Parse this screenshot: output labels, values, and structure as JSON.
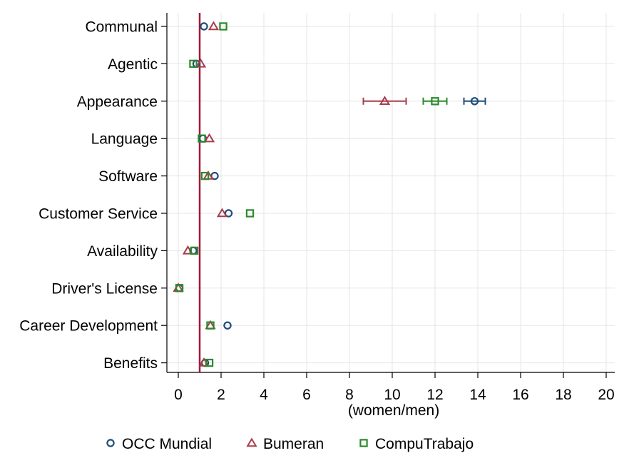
{
  "chart_data": {
    "type": "scatter",
    "title": "",
    "xlabel": "(women/men)",
    "ylabel": "",
    "xlim": [
      0,
      20
    ],
    "xticks": [
      0,
      2,
      4,
      6,
      8,
      10,
      12,
      14,
      16,
      18,
      20
    ],
    "xtick_labels": [
      "0",
      "2",
      "4",
      "6",
      "8",
      "10",
      "12",
      "14",
      "16",
      "18",
      "20"
    ],
    "grid": true,
    "legend_position": "bottom",
    "reference_line": {
      "x": 1,
      "color": "#a2173d"
    },
    "categories": [
      "Communal",
      "Agentic",
      "Appearance",
      "Language",
      "Software",
      "Customer Service",
      "Availability",
      "Driver's License",
      "Career Development",
      "Benefits"
    ],
    "series": [
      {
        "name": "OCC Mundial",
        "marker": "circle",
        "color": "#1f4e79",
        "values": [
          1.2,
          0.85,
          13.85,
          1.15,
          1.7,
          2.35,
          0.7,
          0.05,
          2.3,
          1.25
        ],
        "ci_low": [
          null,
          null,
          13.35,
          null,
          null,
          null,
          null,
          null,
          null,
          null
        ],
        "ci_high": [
          null,
          null,
          14.35,
          null,
          null,
          null,
          null,
          null,
          null,
          null
        ]
      },
      {
        "name": "Bumeran",
        "marker": "triangle",
        "color": "#a83c4c",
        "values": [
          1.65,
          1.05,
          9.65,
          1.45,
          1.4,
          2.05,
          0.45,
          0.0,
          1.5,
          1.2
        ],
        "ci_low": [
          null,
          null,
          8.65,
          null,
          null,
          null,
          null,
          null,
          null,
          null
        ],
        "ci_high": [
          null,
          null,
          10.65,
          null,
          null,
          null,
          null,
          null,
          null,
          null
        ]
      },
      {
        "name": "CompuTrabajo",
        "marker": "square",
        "color": "#2b8a2b",
        "values": [
          2.1,
          0.7,
          12.0,
          1.1,
          1.25,
          3.35,
          0.75,
          0.05,
          1.5,
          1.45
        ],
        "ci_low": [
          null,
          null,
          11.45,
          null,
          null,
          null,
          null,
          null,
          null,
          null
        ],
        "ci_high": [
          null,
          null,
          12.55,
          null,
          null,
          null,
          null,
          null,
          null,
          null
        ]
      }
    ]
  }
}
